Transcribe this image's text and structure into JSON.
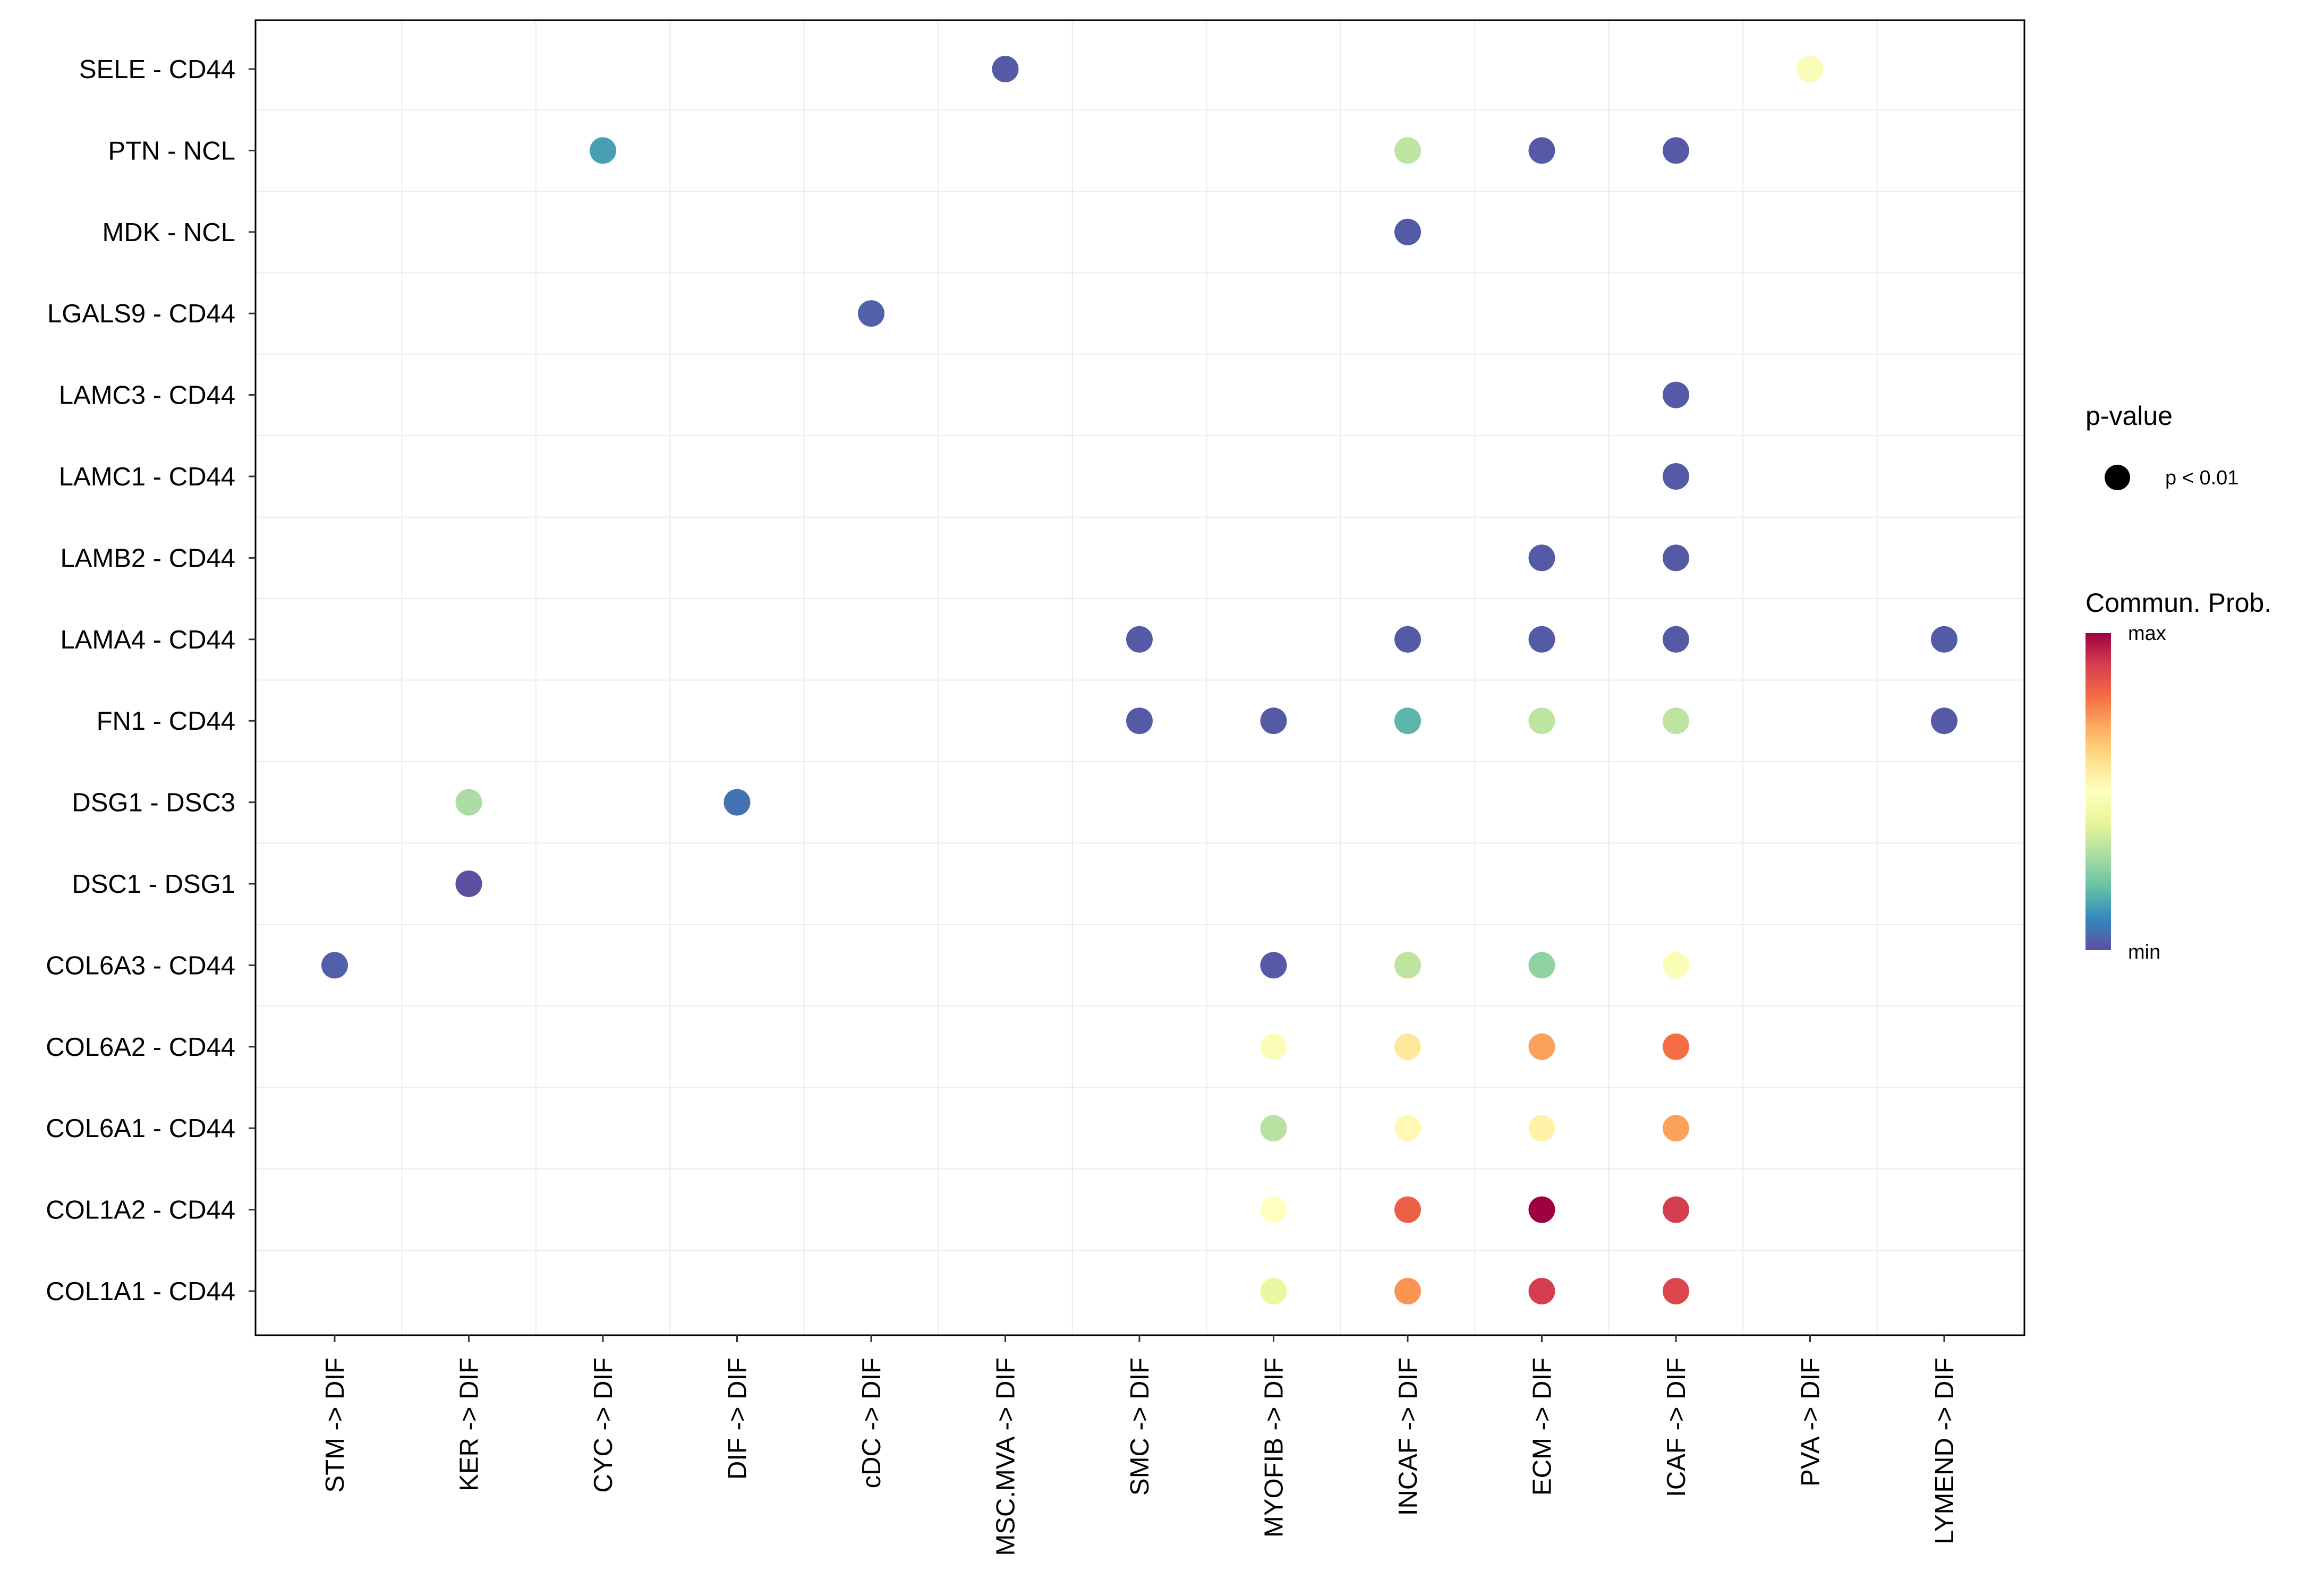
{
  "chart_data": {
    "type": "scatter",
    "title": "",
    "xlabel": "",
    "ylabel": "",
    "categories_x": [
      "STM -> DIF",
      "KER -> DIF",
      "CYC -> DIF",
      "DIF -> DIF",
      "cDC -> DIF",
      "MSC.MVA -> DIF",
      "SMC -> DIF",
      "MYOFIB -> DIF",
      "INCAF -> DIF",
      "ECM -> DIF",
      "ICAF -> DIF",
      "PVA -> DIF",
      "LYMEND -> DIF"
    ],
    "categories_y": [
      "SELE - CD44",
      "PTN - NCL",
      "MDK - NCL",
      "LGALS9 - CD44",
      "LAMC3 - CD44",
      "LAMC1 - CD44",
      "LAMB2 - CD44",
      "LAMA4 - CD44",
      "FN1 - CD44",
      "DSG1 - DSC3",
      "DSC1 - DSG1",
      "COL6A3 - CD44",
      "COL6A2 - CD44",
      "COL6A1 - CD44",
      "COL1A2 - CD44",
      "COL1A1 - CD44"
    ],
    "value_scale": "0 = min, 1 = max (relative communication probability)",
    "points": [
      {
        "row": "SELE - CD44",
        "col": "MSC.MVA -> DIF",
        "value": 0.02
      },
      {
        "row": "SELE - CD44",
        "col": "PVA -> DIF",
        "value": 0.48
      },
      {
        "row": "PTN - NCL",
        "col": "CYC -> DIF",
        "value": 0.14
      },
      {
        "row": "PTN - NCL",
        "col": "INCAF -> DIF",
        "value": 0.33
      },
      {
        "row": "PTN - NCL",
        "col": "ECM -> DIF",
        "value": 0.02
      },
      {
        "row": "PTN - NCL",
        "col": "ICAF -> DIF",
        "value": 0.02
      },
      {
        "row": "MDK - NCL",
        "col": "INCAF -> DIF",
        "value": 0.02
      },
      {
        "row": "LGALS9 - CD44",
        "col": "cDC -> DIF",
        "value": 0.03
      },
      {
        "row": "LAMC3 - CD44",
        "col": "ICAF -> DIF",
        "value": 0.02
      },
      {
        "row": "LAMC1 - CD44",
        "col": "ICAF -> DIF",
        "value": 0.02
      },
      {
        "row": "LAMB2 - CD44",
        "col": "ECM -> DIF",
        "value": 0.02
      },
      {
        "row": "LAMB2 - CD44",
        "col": "ICAF -> DIF",
        "value": 0.02
      },
      {
        "row": "LAMA4 - CD44",
        "col": "SMC -> DIF",
        "value": 0.02
      },
      {
        "row": "LAMA4 - CD44",
        "col": "INCAF -> DIF",
        "value": 0.02
      },
      {
        "row": "LAMA4 - CD44",
        "col": "ECM -> DIF",
        "value": 0.02
      },
      {
        "row": "LAMA4 - CD44",
        "col": "ICAF -> DIF",
        "value": 0.02
      },
      {
        "row": "LAMA4 - CD44",
        "col": "LYMEND -> DIF",
        "value": 0.02
      },
      {
        "row": "FN1 - CD44",
        "col": "SMC -> DIF",
        "value": 0.02
      },
      {
        "row": "FN1 - CD44",
        "col": "MYOFIB -> DIF",
        "value": 0.02
      },
      {
        "row": "FN1 - CD44",
        "col": "INCAF -> DIF",
        "value": 0.18
      },
      {
        "row": "FN1 - CD44",
        "col": "ECM -> DIF",
        "value": 0.33
      },
      {
        "row": "FN1 - CD44",
        "col": "ICAF -> DIF",
        "value": 0.33
      },
      {
        "row": "FN1 - CD44",
        "col": "LYMEND -> DIF",
        "value": 0.02
      },
      {
        "row": "DSG1 - DSC3",
        "col": "KER -> DIF",
        "value": 0.3
      },
      {
        "row": "DSG1 - DSC3",
        "col": "DIF -> DIF",
        "value": 0.06
      },
      {
        "row": "DSC1 - DSG1",
        "col": "KER -> DIF",
        "value": 0.0
      },
      {
        "row": "COL6A3 - CD44",
        "col": "STM -> DIF",
        "value": 0.03
      },
      {
        "row": "COL6A3 - CD44",
        "col": "MYOFIB -> DIF",
        "value": 0.02
      },
      {
        "row": "COL6A3 - CD44",
        "col": "INCAF -> DIF",
        "value": 0.33
      },
      {
        "row": "COL6A3 - CD44",
        "col": "ECM -> DIF",
        "value": 0.26
      },
      {
        "row": "COL6A3 - CD44",
        "col": "ICAF -> DIF",
        "value": 0.48
      },
      {
        "row": "COL6A2 - CD44",
        "col": "MYOFIB -> DIF",
        "value": 0.48
      },
      {
        "row": "COL6A2 - CD44",
        "col": "INCAF -> DIF",
        "value": 0.57
      },
      {
        "row": "COL6A2 - CD44",
        "col": "ECM -> DIF",
        "value": 0.72
      },
      {
        "row": "COL6A2 - CD44",
        "col": "ICAF -> DIF",
        "value": 0.8
      },
      {
        "row": "COL6A1 - CD44",
        "col": "MYOFIB -> DIF",
        "value": 0.32
      },
      {
        "row": "COL6A1 - CD44",
        "col": "INCAF -> DIF",
        "value": 0.52
      },
      {
        "row": "COL6A1 - CD44",
        "col": "ECM -> DIF",
        "value": 0.54
      },
      {
        "row": "COL6A1 - CD44",
        "col": "ICAF -> DIF",
        "value": 0.72
      },
      {
        "row": "COL1A2 - CD44",
        "col": "MYOFIB -> DIF",
        "value": 0.5
      },
      {
        "row": "COL1A2 - CD44",
        "col": "INCAF -> DIF",
        "value": 0.83
      },
      {
        "row": "COL1A2 - CD44",
        "col": "ECM -> DIF",
        "value": 1.0
      },
      {
        "row": "COL1A2 - CD44",
        "col": "ICAF -> DIF",
        "value": 0.9
      },
      {
        "row": "COL1A1 - CD44",
        "col": "MYOFIB -> DIF",
        "value": 0.42
      },
      {
        "row": "COL1A1 - CD44",
        "col": "INCAF -> DIF",
        "value": 0.74
      },
      {
        "row": "COL1A1 - CD44",
        "col": "ECM -> DIF",
        "value": 0.9
      },
      {
        "row": "COL1A1 - CD44",
        "col": "ICAF -> DIF",
        "value": 0.88
      }
    ],
    "legend": {
      "pvalue_title": "p-value",
      "pvalue_label": "p < 0.01",
      "color_title": "Commun. Prob.",
      "color_max_label": "max",
      "color_min_label": "min",
      "placement": "right"
    },
    "grid": true,
    "colormap": [
      "#5E4FA2",
      "#3288BD",
      "#66C2A5",
      "#ABDDA4",
      "#E6F598",
      "#FFFFBF",
      "#FEE08B",
      "#FDAE61",
      "#F46D43",
      "#D53E4F",
      "#9E0142"
    ]
  }
}
